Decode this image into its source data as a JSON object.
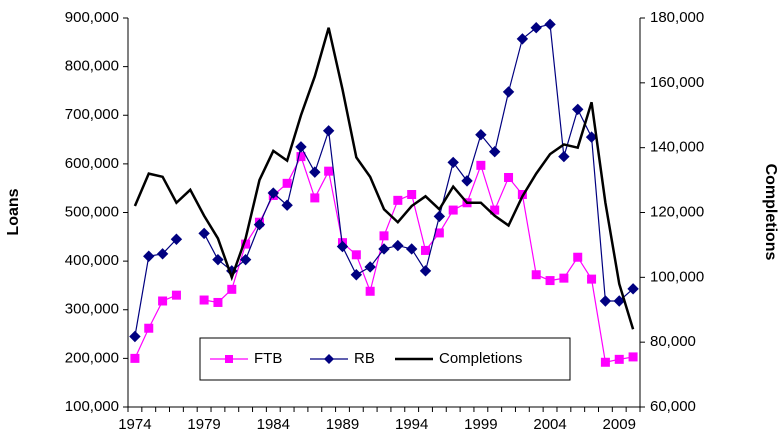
{
  "chart_data": {
    "type": "line",
    "y_label": "Loans",
    "y2_label": "Completions",
    "categories": [
      "1974",
      null,
      null,
      null,
      null,
      "1979",
      null,
      null,
      null,
      null,
      "1984",
      null,
      null,
      null,
      null,
      "1989",
      null,
      null,
      null,
      null,
      "1994",
      null,
      null,
      null,
      null,
      "1999",
      null,
      null,
      null,
      null,
      "2004",
      null,
      null,
      null,
      null,
      "2009",
      null
    ],
    "ylim": [
      100000,
      900000
    ],
    "yticks": [
      {
        "value": 100000,
        "label": "100,000"
      },
      {
        "value": 200000,
        "label": "200,000"
      },
      {
        "value": 300000,
        "label": "300,000"
      },
      {
        "value": 400000,
        "label": "400,000"
      },
      {
        "value": 500000,
        "label": "500,000"
      },
      {
        "value": 600000,
        "label": "600,000"
      },
      {
        "value": 700000,
        "label": "700,000"
      },
      {
        "value": 800000,
        "label": "800,000"
      },
      {
        "value": 900000,
        "label": "900,000"
      }
    ],
    "y2lim": [
      60000,
      180000
    ],
    "y2ticks": [
      {
        "value": 60000,
        "label": "60,000"
      },
      {
        "value": 80000,
        "label": "80,000"
      },
      {
        "value": 100000,
        "label": "100,000"
      },
      {
        "value": 120000,
        "label": "120,000"
      },
      {
        "value": 140000,
        "label": "140,000"
      },
      {
        "value": 160000,
        "label": "160,000"
      },
      {
        "value": 180000,
        "label": "180,000"
      }
    ],
    "series": [
      {
        "name": "FTB",
        "color": "#ff00ff",
        "marker": "square",
        "values": [
          200000,
          262000,
          318000,
          330000,
          null,
          320000,
          315000,
          342000,
          435000,
          480000,
          535000,
          560000,
          615000,
          530000,
          585000,
          438000,
          413000,
          338000,
          452000,
          525000,
          537000,
          422000,
          458000,
          505000,
          520000,
          597000,
          505000,
          572000,
          537000,
          372000,
          360000,
          365000,
          408000,
          363000,
          192000,
          198000,
          203000
        ]
      },
      {
        "name": "RB",
        "color": "#000080",
        "marker": "diamond",
        "values": [
          245000,
          410000,
          415000,
          445000,
          null,
          457000,
          403000,
          380000,
          403000,
          475000,
          540000,
          515000,
          635000,
          583000,
          668000,
          430000,
          372000,
          388000,
          425000,
          432000,
          425000,
          380000,
          492000,
          603000,
          565000,
          660000,
          625000,
          748000,
          857000,
          880000,
          887000,
          615000,
          712000,
          655000,
          318000,
          318000,
          343000
        ]
      },
      {
        "name": "Completions",
        "color": "#000000",
        "marker": "none",
        "axis": "y2",
        "values": [
          122000,
          132000,
          131000,
          123000,
          127000,
          119000,
          112000,
          100000,
          112000,
          130000,
          139000,
          136000,
          150000,
          162000,
          177000,
          158000,
          137000,
          131000,
          121000,
          117000,
          122000,
          125000,
          121000,
          128000,
          123000,
          123000,
          119000,
          116000,
          125000,
          132000,
          138000,
          141000,
          140000,
          154000,
          123000,
          98000,
          84000
        ]
      }
    ],
    "legend": "bottom-center"
  }
}
